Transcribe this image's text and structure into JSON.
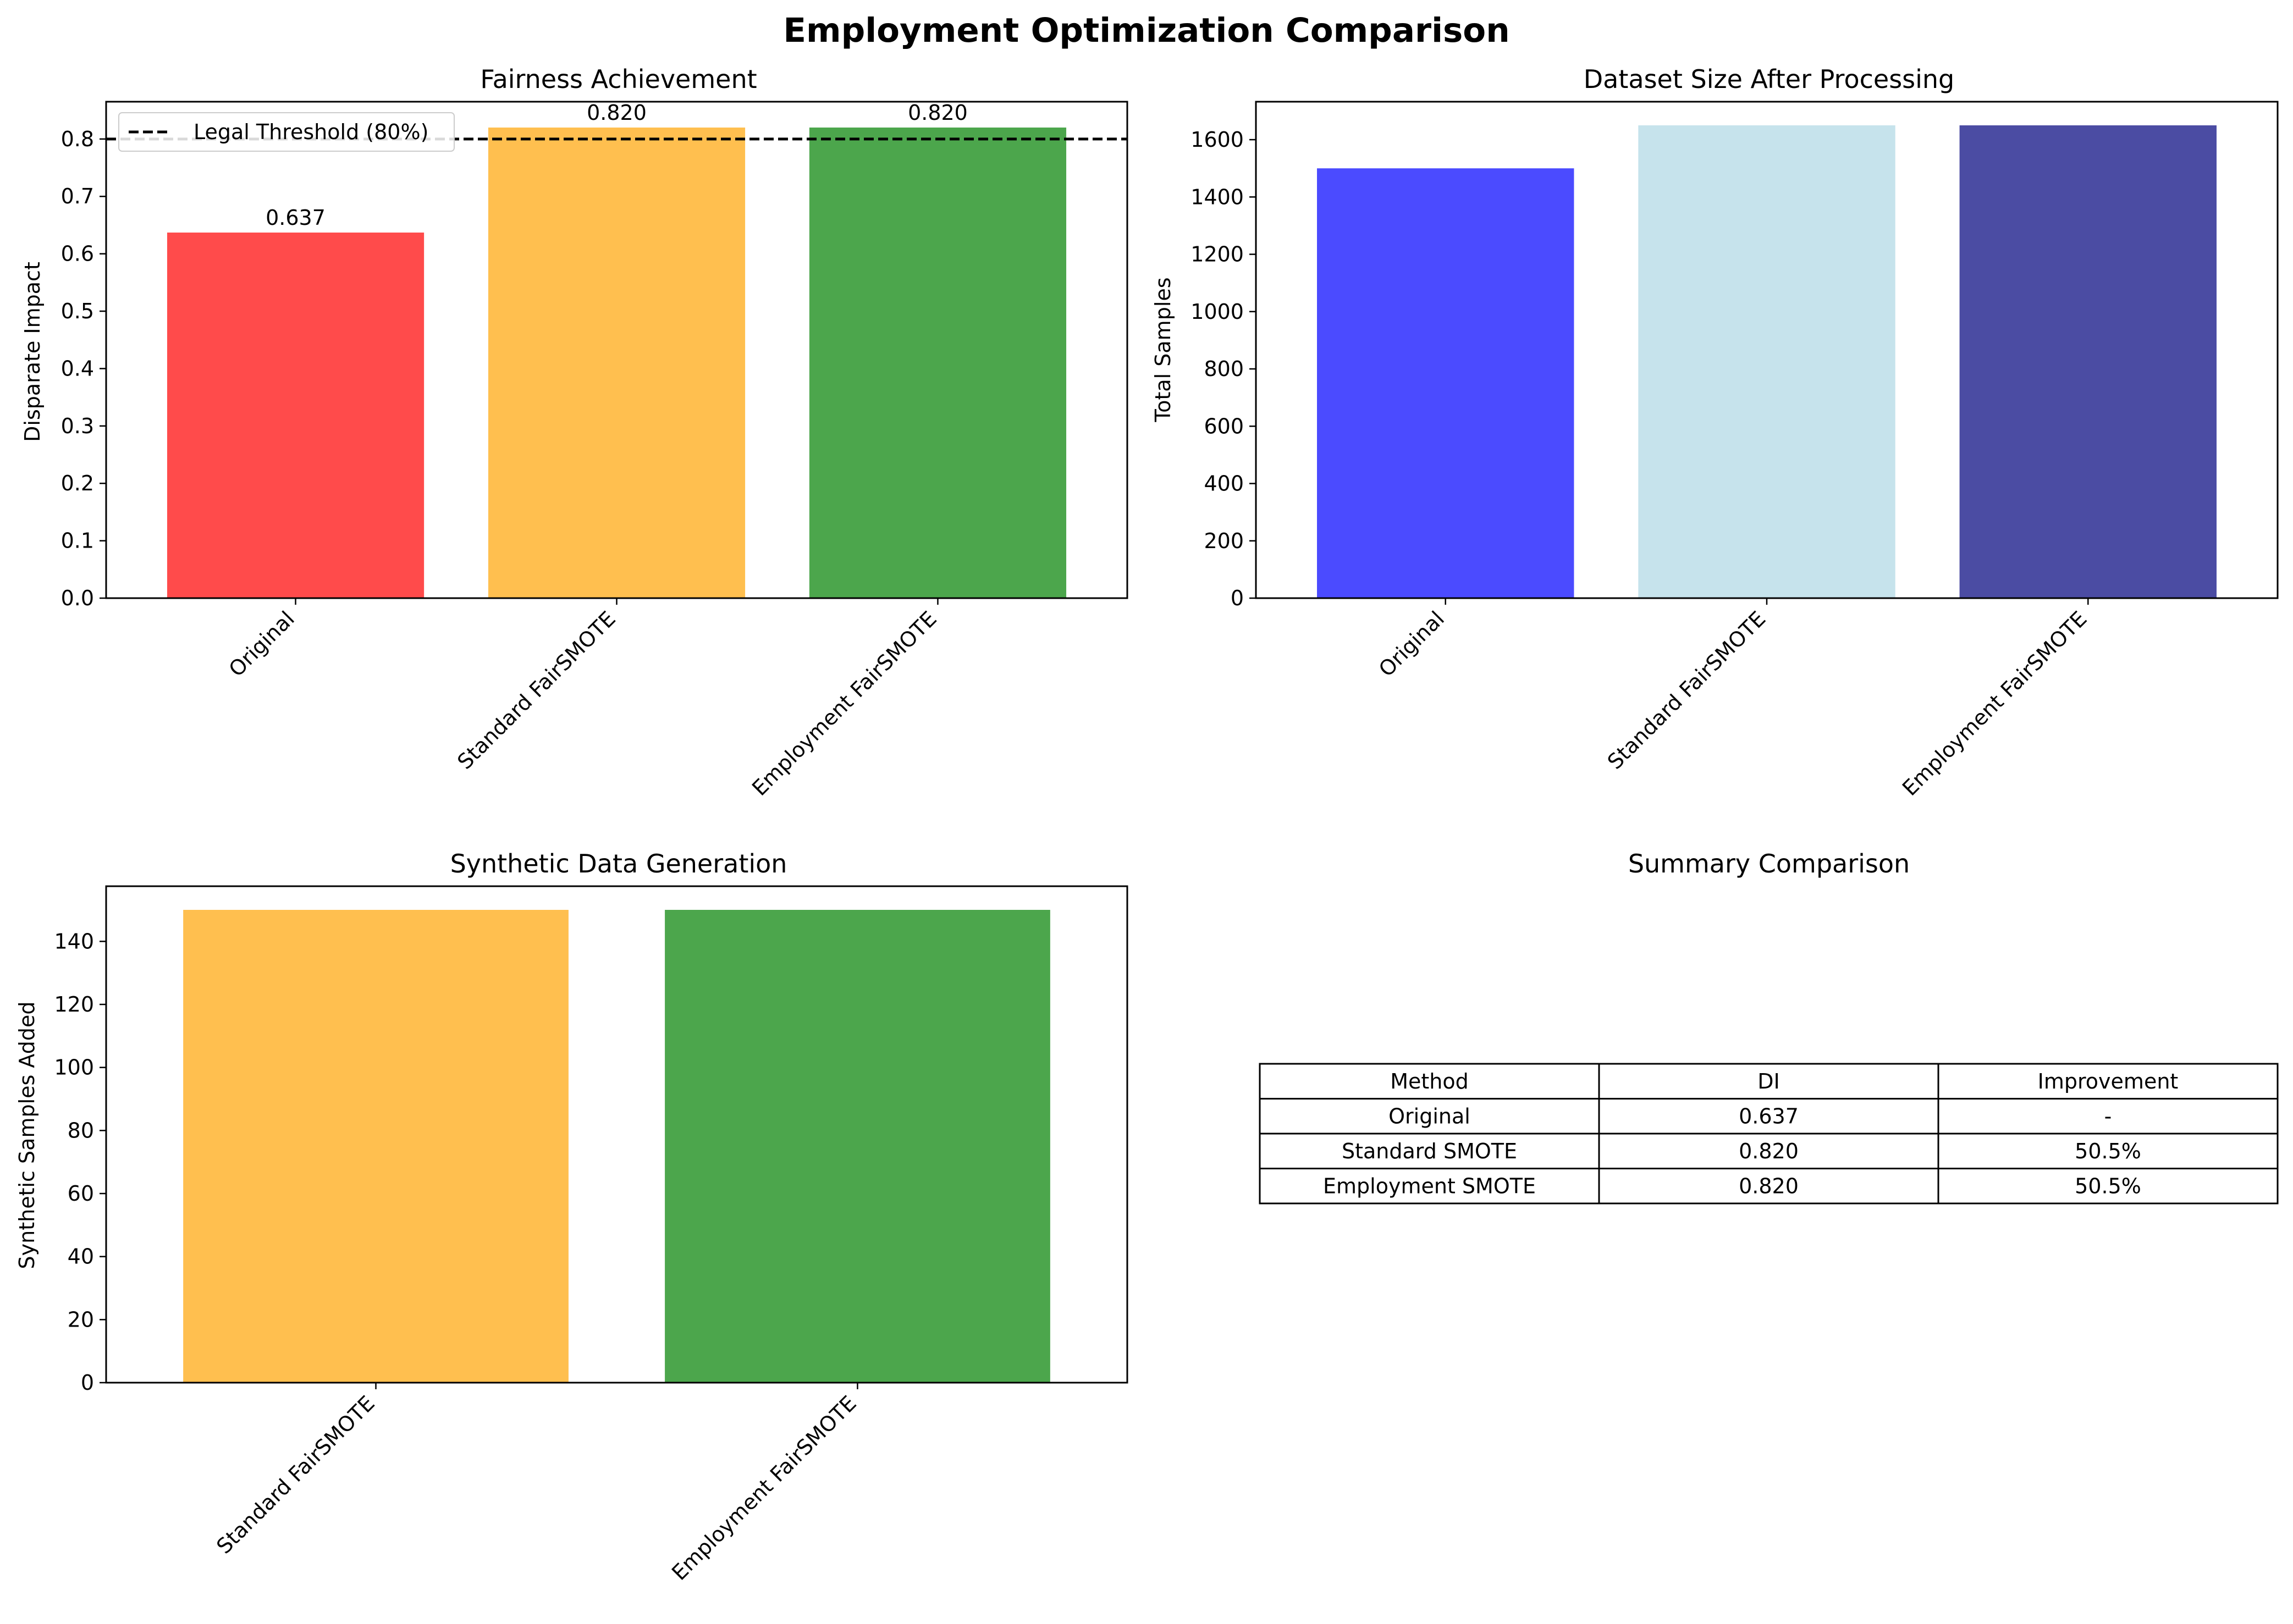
{
  "figure_title": "Employment Optimization Comparison",
  "chart_data": [
    {
      "type": "bar",
      "title": "Fairness Achievement",
      "xlabel": "",
      "ylabel": "Disparate Impact",
      "categories": [
        "Original",
        "Standard FairSMOTE",
        "Employment FairSMOTE"
      ],
      "values": [
        0.637,
        0.82,
        0.82
      ],
      "value_labels": [
        "0.637",
        "0.820",
        "0.820"
      ],
      "colors": [
        "#ff4b4b",
        "#ffbf4f",
        "#4ca64c"
      ],
      "ylim": [
        0,
        0.865
      ],
      "yticks": [
        0.0,
        0.1,
        0.2,
        0.3,
        0.4,
        0.5,
        0.6,
        0.7,
        0.8
      ],
      "ytick_labels": [
        "0.0",
        "0.1",
        "0.2",
        "0.3",
        "0.4",
        "0.5",
        "0.6",
        "0.7",
        "0.8"
      ],
      "grid": false,
      "reference_line": {
        "value": 0.8,
        "label": "Legal Threshold (80%)",
        "style": "dashed",
        "color": "#000000"
      },
      "legend": {
        "position": "upper-left",
        "entries": [
          "Legal Threshold (80%)"
        ]
      }
    },
    {
      "type": "bar",
      "title": "Dataset Size After Processing",
      "xlabel": "",
      "ylabel": "Total Samples",
      "categories": [
        "Original",
        "Standard FairSMOTE",
        "Employment FairSMOTE"
      ],
      "values": [
        1500,
        1650,
        1650
      ],
      "colors": [
        "#4b4bff",
        "#c6e3ec",
        "#4b4ca3"
      ],
      "ylim": [
        0,
        1732.5
      ],
      "yticks": [
        0,
        200,
        400,
        600,
        800,
        1000,
        1200,
        1400,
        1600
      ],
      "ytick_labels": [
        "0",
        "200",
        "400",
        "600",
        "800",
        "1000",
        "1200",
        "1400",
        "1600"
      ],
      "grid": false
    },
    {
      "type": "bar",
      "title": "Synthetic Data Generation",
      "xlabel": "",
      "ylabel": "Synthetic Samples Added",
      "categories": [
        "Standard FairSMOTE",
        "Employment FairSMOTE"
      ],
      "values": [
        150,
        150
      ],
      "colors": [
        "#ffbf4f",
        "#4ca64c"
      ],
      "ylim": [
        0,
        157.5
      ],
      "yticks": [
        0,
        20,
        40,
        60,
        80,
        100,
        120,
        140
      ],
      "ytick_labels": [
        "0",
        "20",
        "40",
        "60",
        "80",
        "100",
        "120",
        "140"
      ],
      "grid": false
    },
    {
      "type": "table",
      "title": "Summary Comparison",
      "columns": [
        "Method",
        "DI",
        "Improvement"
      ],
      "rows": [
        [
          "Original",
          "0.637",
          "-"
        ],
        [
          "Standard SMOTE",
          "0.820",
          "50.5%"
        ],
        [
          "Employment SMOTE",
          "0.820",
          "50.5%"
        ]
      ]
    }
  ]
}
